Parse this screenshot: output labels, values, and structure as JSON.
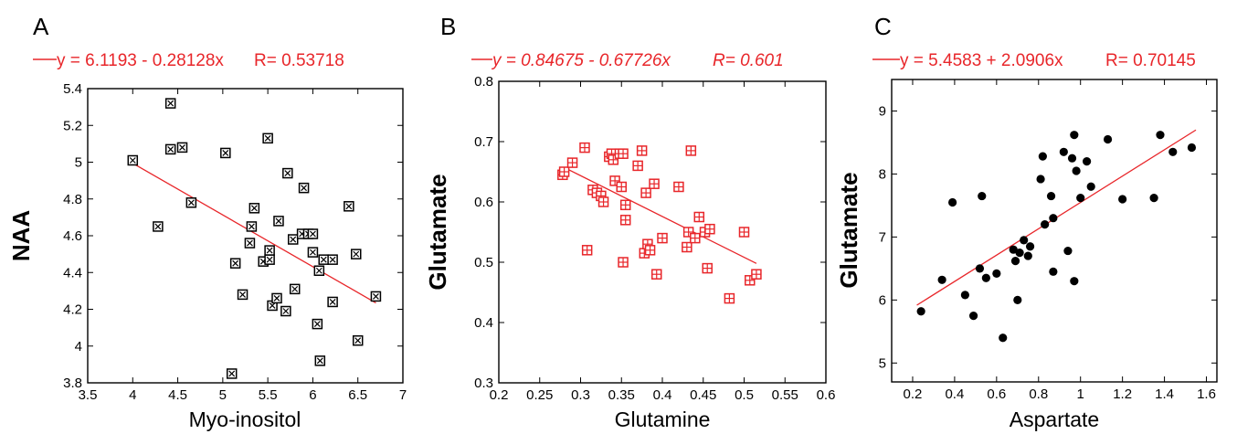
{
  "chart_data": [
    {
      "panel": "A",
      "type": "scatter",
      "equation": "y = 6.1193 - 0.28128x",
      "r_text": "R= 0.53718",
      "xlabel": "Myo-inositol",
      "ylabel": "NAA",
      "xlim": [
        3.5,
        7
      ],
      "ylim": [
        3.8,
        5.4
      ],
      "xticks": [
        "3.5",
        "4",
        "4.5",
        "5",
        "5.5",
        "6",
        "6.5",
        "7"
      ],
      "yticks": [
        "3.8",
        "4",
        "4.2",
        "4.4",
        "4.6",
        "4.8",
        "5",
        "5.2",
        "5.4"
      ],
      "marker": "square-x",
      "marker_color": "#000000",
      "fit_color": "#e8262a",
      "fit": {
        "intercept": 6.1193,
        "slope": -0.28128,
        "x_range": [
          4.0,
          6.7
        ]
      },
      "points": [
        [
          4.0,
          5.01
        ],
        [
          4.28,
          4.65
        ],
        [
          4.42,
          5.32
        ],
        [
          4.42,
          5.07
        ],
        [
          4.55,
          5.08
        ],
        [
          4.65,
          4.78
        ],
        [
          5.03,
          5.05
        ],
        [
          5.1,
          3.85
        ],
        [
          5.14,
          4.45
        ],
        [
          5.22,
          4.28
        ],
        [
          5.3,
          4.56
        ],
        [
          5.32,
          4.65
        ],
        [
          5.35,
          4.75
        ],
        [
          5.45,
          4.46
        ],
        [
          5.5,
          5.13
        ],
        [
          5.52,
          4.52
        ],
        [
          5.52,
          4.47
        ],
        [
          5.55,
          4.22
        ],
        [
          5.6,
          4.26
        ],
        [
          5.62,
          4.68
        ],
        [
          5.7,
          4.19
        ],
        [
          5.72,
          4.94
        ],
        [
          5.78,
          4.58
        ],
        [
          5.8,
          4.31
        ],
        [
          5.88,
          4.61
        ],
        [
          5.9,
          4.86
        ],
        [
          5.95,
          4.61
        ],
        [
          6.0,
          4.61
        ],
        [
          6.0,
          4.51
        ],
        [
          6.05,
          4.12
        ],
        [
          6.07,
          4.41
        ],
        [
          6.08,
          3.92
        ],
        [
          6.12,
          4.47
        ],
        [
          6.22,
          4.47
        ],
        [
          6.22,
          4.24
        ],
        [
          6.4,
          4.76
        ],
        [
          6.48,
          4.5
        ],
        [
          6.5,
          4.03
        ],
        [
          6.7,
          4.27
        ]
      ]
    },
    {
      "panel": "B",
      "type": "scatter",
      "equation": "y = 0.84675 - 0.67726x",
      "r_text": "R= 0.601",
      "xlabel": "Glutamine",
      "ylabel": "Glutamate",
      "xlim": [
        0.2,
        0.6
      ],
      "ylim": [
        0.3,
        0.8
      ],
      "xticks": [
        "0.2",
        "0.25",
        "0.3",
        "0.35",
        "0.4",
        "0.45",
        "0.5",
        "0.55",
        "0.6"
      ],
      "yticks": [
        "0.3",
        "0.4",
        "0.5",
        "0.6",
        "0.7",
        "0.8"
      ],
      "marker": "square-plus",
      "marker_color": "#e8262a",
      "fit_color": "#e8262a",
      "fit": {
        "intercept": 0.84675,
        "slope": -0.67726,
        "x_range": [
          0.28,
          0.515
        ]
      },
      "points": [
        [
          0.278,
          0.645
        ],
        [
          0.28,
          0.65
        ],
        [
          0.29,
          0.665
        ],
        [
          0.305,
          0.69
        ],
        [
          0.308,
          0.52
        ],
        [
          0.315,
          0.62
        ],
        [
          0.32,
          0.615
        ],
        [
          0.325,
          0.61
        ],
        [
          0.328,
          0.6
        ],
        [
          0.335,
          0.675
        ],
        [
          0.338,
          0.68
        ],
        [
          0.34,
          0.67
        ],
        [
          0.342,
          0.635
        ],
        [
          0.348,
          0.68
        ],
        [
          0.35,
          0.625
        ],
        [
          0.352,
          0.68
        ],
        [
          0.352,
          0.5
        ],
        [
          0.355,
          0.57
        ],
        [
          0.355,
          0.595
        ],
        [
          0.37,
          0.66
        ],
        [
          0.375,
          0.685
        ],
        [
          0.378,
          0.515
        ],
        [
          0.38,
          0.615
        ],
        [
          0.382,
          0.53
        ],
        [
          0.385,
          0.52
        ],
        [
          0.39,
          0.63
        ],
        [
          0.393,
          0.48
        ],
        [
          0.4,
          0.54
        ],
        [
          0.42,
          0.625
        ],
        [
          0.43,
          0.525
        ],
        [
          0.432,
          0.55
        ],
        [
          0.435,
          0.685
        ],
        [
          0.44,
          0.54
        ],
        [
          0.445,
          0.575
        ],
        [
          0.452,
          0.55
        ],
        [
          0.455,
          0.49
        ],
        [
          0.458,
          0.555
        ],
        [
          0.482,
          0.44
        ],
        [
          0.5,
          0.55
        ],
        [
          0.507,
          0.47
        ],
        [
          0.515,
          0.48
        ]
      ]
    },
    {
      "panel": "C",
      "type": "scatter",
      "equation": "y = 5.4583 + 2.0906x",
      "r_text": "R= 0.70145",
      "xlabel": "Aspartate",
      "ylabel": "Glutamate",
      "xlim": [
        0.1,
        1.65
      ],
      "ylim": [
        4.7,
        9.5
      ],
      "xticks": [
        "0.2",
        "0.4",
        "0.6",
        "0.8",
        "1",
        "1.2",
        "1.4",
        "1.6"
      ],
      "yticks": [
        "5",
        "6",
        "7",
        "8",
        "9"
      ],
      "marker": "filled-circle",
      "marker_color": "#000000",
      "fit_color": "#e8262a",
      "fit": {
        "intercept": 5.4583,
        "slope": 2.0906,
        "x_range": [
          0.22,
          1.55
        ]
      },
      "points": [
        [
          0.24,
          5.82
        ],
        [
          0.34,
          6.32
        ],
        [
          0.39,
          7.55
        ],
        [
          0.45,
          6.08
        ],
        [
          0.49,
          5.75
        ],
        [
          0.52,
          6.5
        ],
        [
          0.53,
          7.65
        ],
        [
          0.55,
          6.35
        ],
        [
          0.6,
          6.42
        ],
        [
          0.63,
          5.4
        ],
        [
          0.68,
          6.8
        ],
        [
          0.69,
          6.62
        ],
        [
          0.7,
          6.0
        ],
        [
          0.71,
          6.75
        ],
        [
          0.73,
          6.95
        ],
        [
          0.75,
          6.7
        ],
        [
          0.76,
          6.85
        ],
        [
          0.81,
          7.92
        ],
        [
          0.82,
          8.28
        ],
        [
          0.83,
          7.2
        ],
        [
          0.86,
          7.65
        ],
        [
          0.87,
          6.45
        ],
        [
          0.87,
          7.3
        ],
        [
          0.92,
          8.35
        ],
        [
          0.94,
          6.78
        ],
        [
          0.96,
          8.25
        ],
        [
          0.97,
          8.62
        ],
        [
          0.97,
          6.3
        ],
        [
          0.98,
          8.05
        ],
        [
          1.0,
          7.62
        ],
        [
          1.03,
          8.2
        ],
        [
          1.05,
          7.8
        ],
        [
          1.13,
          8.55
        ],
        [
          1.2,
          7.6
        ],
        [
          1.35,
          7.62
        ],
        [
          1.38,
          8.62
        ],
        [
          1.44,
          8.35
        ],
        [
          1.53,
          8.42
        ]
      ]
    }
  ]
}
